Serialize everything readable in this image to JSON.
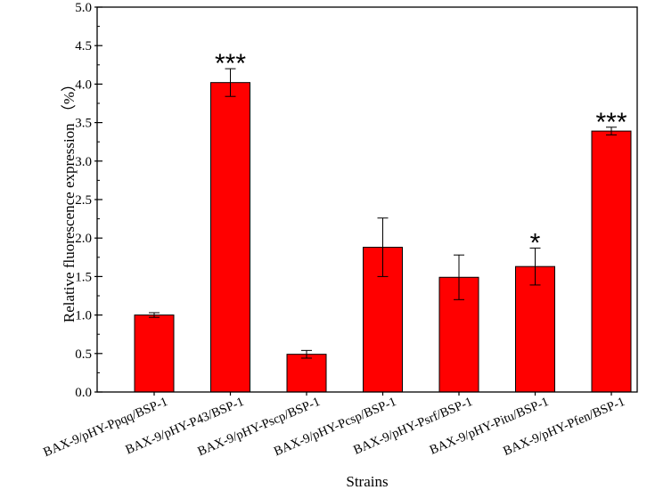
{
  "chart_data": {
    "type": "bar",
    "title": "",
    "xlabel": "Strains",
    "ylabel": "Relative fluorescence expression （%）",
    "ylim": [
      0,
      5.0
    ],
    "yticks": [
      "0.0",
      "0.5",
      "1.0",
      "1.5",
      "2.0",
      "2.5",
      "3.0",
      "3.5",
      "4.0",
      "4.5",
      "5.0"
    ],
    "categories": [
      "BAX-9/pHY-Ppqq/BSP-1",
      "BAX-9/pHY-P43/BSP-1",
      "BAX-9/pHY-Pscp/BSP-1",
      "BAX-9/pHY-Pcsp/BSP-1",
      "BAX-9/pHY-Psrf/BSP-1",
      "BAX-9/pHY-Pitu/BSP-1",
      "BAX-9/pHY-Pfen/BSP-1"
    ],
    "values": [
      1.0,
      4.02,
      0.49,
      1.88,
      1.49,
      1.63,
      3.39
    ],
    "errors": [
      0.03,
      0.18,
      0.05,
      0.38,
      0.29,
      0.24,
      0.05
    ],
    "significance": [
      "",
      "***",
      "",
      "",
      "",
      "*",
      "***"
    ],
    "bar_color": "#ff0000",
    "grid": false,
    "legend": "none"
  }
}
